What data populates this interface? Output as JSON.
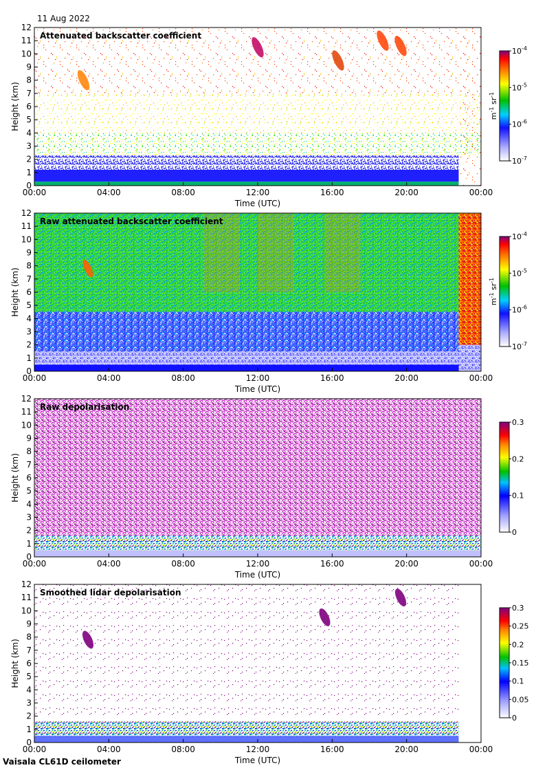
{
  "header": {
    "date": "11 Aug 2022"
  },
  "footer": {
    "instrument": "Vaisala CL61D ceilometer"
  },
  "colors": {
    "low": "#e8e8ff",
    "blue": "#1010ff",
    "cyan": "#00e0e0",
    "green": "#00c000",
    "yellow": "#ffff00",
    "orange": "#ff8000",
    "red": "#ff0000",
    "purple": "#800080"
  },
  "chart_data": [
    {
      "type": "heatmap",
      "title": "Attenuated backscatter coefficient",
      "xlabel": "Time (UTC)",
      "ylabel": "Height (km)",
      "x_ticks": [
        "00:00",
        "04:00",
        "08:00",
        "12:00",
        "16:00",
        "20:00",
        "00:00"
      ],
      "y_ticks": [
        "0",
        "1",
        "2",
        "3",
        "4",
        "5",
        "6",
        "7",
        "8",
        "9",
        "10",
        "11",
        "12"
      ],
      "ylim": [
        0,
        12
      ],
      "colorbar": {
        "scale": "log",
        "range": [
          1e-07,
          0.0001
        ],
        "ticks": [
          {
            "base": "10",
            "exp": "-4",
            "value": -4
          },
          {
            "base": "10",
            "exp": "-5",
            "value": -5
          },
          {
            "base": "10",
            "exp": "-6",
            "value": -6
          },
          {
            "base": "10",
            "exp": "-7",
            "value": -7
          }
        ],
        "units": "m-1 sr-1"
      }
    },
    {
      "type": "heatmap",
      "title": "Raw attenuated backscatter coefficient",
      "xlabel": "Time (UTC)",
      "ylabel": "Height (km)",
      "x_ticks": [
        "00:00",
        "04:00",
        "08:00",
        "12:00",
        "16:00",
        "20:00",
        "00:00"
      ],
      "y_ticks": [
        "0",
        "1",
        "2",
        "3",
        "4",
        "5",
        "6",
        "7",
        "8",
        "9",
        "10",
        "11",
        "12"
      ],
      "ylim": [
        0,
        12
      ],
      "colorbar": {
        "scale": "log",
        "range": [
          1e-07,
          0.0001
        ],
        "ticks": [
          {
            "base": "10",
            "exp": "-4",
            "value": -4
          },
          {
            "base": "10",
            "exp": "-5",
            "value": -5
          },
          {
            "base": "10",
            "exp": "-6",
            "value": -6
          },
          {
            "base": "10",
            "exp": "-7",
            "value": -7
          }
        ],
        "units": "m-1 sr-1"
      }
    },
    {
      "type": "heatmap",
      "title": "Raw depolarisation",
      "xlabel": "Time (UTC)",
      "ylabel": "Height (km)",
      "x_ticks": [
        "00:00",
        "04:00",
        "08:00",
        "12:00",
        "16:00",
        "20:00",
        "00:00"
      ],
      "y_ticks": [
        "0",
        "1",
        "2",
        "3",
        "4",
        "5",
        "6",
        "7",
        "8",
        "9",
        "10",
        "11",
        "12"
      ],
      "ylim": [
        0,
        12
      ],
      "colorbar": {
        "scale": "linear",
        "range": [
          0,
          0.3
        ],
        "ticks": [
          {
            "label": "0.3",
            "value": 0.3
          },
          {
            "label": "0.2",
            "value": 0.2
          },
          {
            "label": "0.1",
            "value": 0.1
          },
          {
            "label": "0",
            "value": 0
          }
        ]
      }
    },
    {
      "type": "heatmap",
      "title": "Smoothed lidar depolarisation",
      "xlabel": "Time (UTC)",
      "ylabel": "Height (km)",
      "x_ticks": [
        "00:00",
        "04:00",
        "08:00",
        "12:00",
        "16:00",
        "20:00",
        "00:00"
      ],
      "y_ticks": [
        "0",
        "1",
        "2",
        "3",
        "4",
        "5",
        "6",
        "7",
        "8",
        "9",
        "10",
        "11",
        "12"
      ],
      "ylim": [
        0,
        12
      ],
      "colorbar": {
        "scale": "linear",
        "range": [
          0,
          0.3
        ],
        "ticks": [
          {
            "label": "0.3",
            "value": 0.3
          },
          {
            "label": "0.25",
            "value": 0.25
          },
          {
            "label": "0.2",
            "value": 0.2
          },
          {
            "label": "0.15",
            "value": 0.15
          },
          {
            "label": "0.1",
            "value": 0.1
          },
          {
            "label": "0.05",
            "value": 0.05
          },
          {
            "label": "0",
            "value": 0
          }
        ]
      }
    }
  ]
}
